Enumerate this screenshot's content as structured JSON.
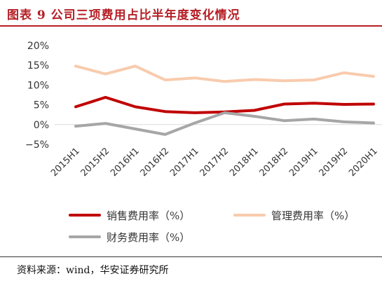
{
  "title": "图表 9 公司三项费用占比半年度变化情况",
  "source": "资料来源：wind，华安证券研究所",
  "chart_data": {
    "type": "line",
    "categories": [
      "2015H1",
      "2015H2",
      "2016H1",
      "2016H2",
      "2017H1",
      "2017H2",
      "2018H1",
      "2018H2",
      "2019H1",
      "2019H2",
      "2020H1"
    ],
    "yticks": [
      "20%",
      "15%",
      "10%",
      "5%",
      "0%",
      "−5%"
    ],
    "ylim": [
      -5,
      20
    ],
    "grid": false,
    "legend_position": "bottom",
    "series": [
      {
        "name": "销售费用率（%）",
        "color": "#c00000",
        "values": [
          4.5,
          6.9,
          4.5,
          3.3,
          3.0,
          3.2,
          3.6,
          5.2,
          5.4,
          5.1,
          5.2
        ]
      },
      {
        "name": "管理费用率（%）",
        "color": "#f8cbad",
        "values": [
          14.8,
          12.8,
          14.8,
          11.3,
          11.8,
          10.9,
          11.4,
          11.1,
          11.3,
          13.1,
          12.2
        ]
      },
      {
        "name": "财务费用率（%）",
        "color": "#a6a6a6",
        "values": [
          -0.4,
          0.3,
          -1.1,
          -2.5,
          0.4,
          3.0,
          2.1,
          1.0,
          1.4,
          0.7,
          0.4
        ]
      }
    ]
  }
}
